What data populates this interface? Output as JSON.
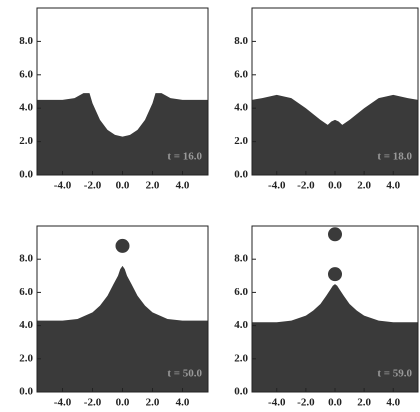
{
  "chart_data": [
    {
      "type": "area",
      "annotation": "t = 16.0",
      "color": "#3a3a3a",
      "x": [
        -5.7,
        -5,
        -4,
        -3.2,
        -2.6,
        -2.2,
        -2.0,
        -1.5,
        -1,
        -0.5,
        0,
        0.5,
        1,
        1.5,
        2.0,
        2.2,
        2.6,
        3.2,
        4,
        5,
        5.7
      ],
      "values": [
        4.5,
        4.5,
        4.5,
        4.6,
        4.9,
        4.9,
        4.3,
        3.3,
        2.7,
        2.4,
        2.3,
        2.4,
        2.7,
        3.3,
        4.3,
        4.9,
        4.9,
        4.6,
        4.5,
        4.5,
        4.5
      ],
      "xlim": [
        -5.7,
        5.7
      ],
      "ylim": [
        0,
        10
      ],
      "xticks": [
        {
          "value": -4,
          "label": "-4.0"
        },
        {
          "value": -2,
          "label": "-2.0"
        },
        {
          "value": 0,
          "label": "0.0"
        },
        {
          "value": 2,
          "label": "2.0"
        },
        {
          "value": 4,
          "label": "4.0"
        }
      ],
      "yticks": [
        {
          "value": 0,
          "label": "0.0"
        },
        {
          "value": 2,
          "label": "2.0"
        },
        {
          "value": 4,
          "label": "4.0"
        },
        {
          "value": 6,
          "label": "6.0"
        },
        {
          "value": 8,
          "label": "8.0"
        }
      ]
    },
    {
      "type": "area",
      "annotation": "t = 18.0",
      "color": "#3a3a3a",
      "x": [
        -5.7,
        -5,
        -4,
        -3,
        -2,
        -1,
        -0.5,
        -0.25,
        0,
        0.25,
        0.5,
        1,
        2,
        3,
        4,
        5,
        5.7
      ],
      "values": [
        4.5,
        4.6,
        4.8,
        4.6,
        4.0,
        3.3,
        3.0,
        3.2,
        3.3,
        3.2,
        3.0,
        3.3,
        4.0,
        4.6,
        4.8,
        4.6,
        4.5
      ],
      "xlim": [
        -5.7,
        5.7
      ],
      "ylim": [
        0,
        10
      ],
      "xticks": [
        {
          "value": -4,
          "label": "-4.0"
        },
        {
          "value": -2,
          "label": "-2.0"
        },
        {
          "value": 0,
          "label": "0.0"
        },
        {
          "value": 2,
          "label": "2.0"
        },
        {
          "value": 4,
          "label": "4.0"
        }
      ],
      "yticks": [
        {
          "value": 0,
          "label": "0.0"
        },
        {
          "value": 2,
          "label": "2.0"
        },
        {
          "value": 4,
          "label": "4.0"
        },
        {
          "value": 6,
          "label": "6.0"
        },
        {
          "value": 8,
          "label": "8.0"
        }
      ]
    },
    {
      "type": "area",
      "annotation": "t = 50.0",
      "color": "#3a3a3a",
      "x": [
        -5.7,
        -5,
        -4,
        -3,
        -2,
        -1.5,
        -1,
        -0.6,
        -0.3,
        -0.15,
        0,
        0.15,
        0.3,
        0.6,
        1,
        1.5,
        2,
        3,
        4,
        5,
        5.7
      ],
      "values": [
        4.3,
        4.3,
        4.3,
        4.4,
        4.8,
        5.2,
        5.8,
        6.5,
        7.0,
        7.4,
        7.6,
        7.4,
        7.0,
        6.5,
        5.8,
        5.2,
        4.8,
        4.4,
        4.3,
        4.3,
        4.3
      ],
      "drops": {
        "x": [
          0
        ],
        "y": [
          8.8
        ]
      },
      "xlim": [
        -5.7,
        5.7
      ],
      "ylim": [
        0,
        10
      ],
      "xticks": [
        {
          "value": -4,
          "label": "-4.0"
        },
        {
          "value": -2,
          "label": "-2.0"
        },
        {
          "value": 0,
          "label": "0.0"
        },
        {
          "value": 2,
          "label": "2.0"
        },
        {
          "value": 4,
          "label": "4.0"
        }
      ],
      "yticks": [
        {
          "value": 0,
          "label": "0.0"
        },
        {
          "value": 2,
          "label": "2.0"
        },
        {
          "value": 4,
          "label": "4.0"
        },
        {
          "value": 6,
          "label": "6.0"
        },
        {
          "value": 8,
          "label": "8.0"
        }
      ]
    },
    {
      "type": "area",
      "annotation": "t = 59.0",
      "color": "#3a3a3a",
      "x": [
        -5.7,
        -5,
        -4,
        -3,
        -2,
        -1.5,
        -1,
        -0.6,
        -0.3,
        -0.15,
        0,
        0.15,
        0.3,
        0.6,
        1,
        1.5,
        2,
        3,
        4,
        5,
        5.7
      ],
      "values": [
        4.2,
        4.2,
        4.2,
        4.3,
        4.6,
        4.9,
        5.3,
        5.8,
        6.2,
        6.4,
        6.5,
        6.4,
        6.2,
        5.8,
        5.3,
        4.9,
        4.6,
        4.3,
        4.2,
        4.2,
        4.2
      ],
      "drops": {
        "x": [
          0,
          0
        ],
        "y": [
          7.1,
          9.5
        ]
      },
      "xlim": [
        -5.7,
        5.7
      ],
      "ylim": [
        0,
        10
      ],
      "xticks": [
        {
          "value": -4,
          "label": "-4.0"
        },
        {
          "value": -2,
          "label": "-2.0"
        },
        {
          "value": 0,
          "label": "0.0"
        },
        {
          "value": 2,
          "label": "2.0"
        },
        {
          "value": 4,
          "label": "4.0"
        }
      ],
      "yticks": [
        {
          "value": 0,
          "label": "0.0"
        },
        {
          "value": 2,
          "label": "2.0"
        },
        {
          "value": 4,
          "label": "4.0"
        },
        {
          "value": 6,
          "label": "6.0"
        },
        {
          "value": 8,
          "label": "8.0"
        }
      ]
    }
  ]
}
